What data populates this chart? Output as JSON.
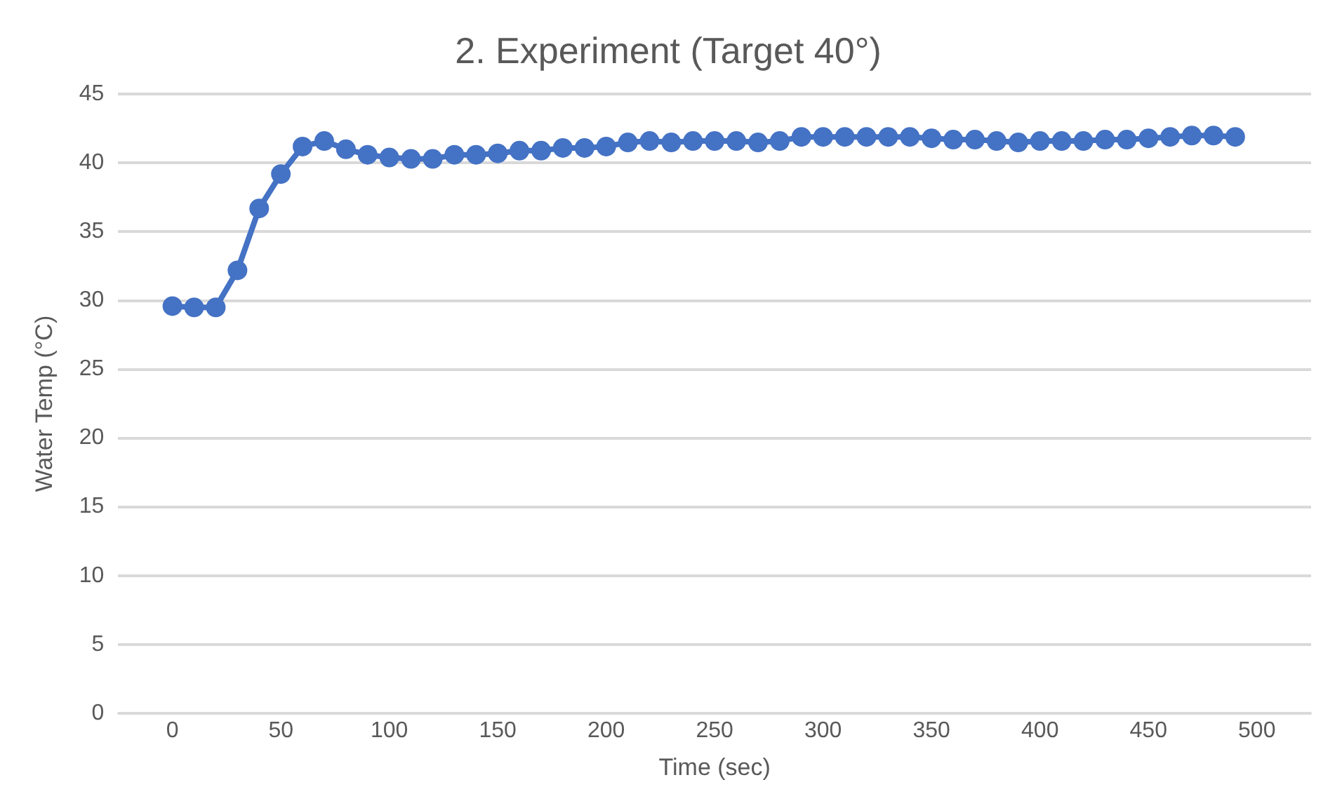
{
  "chart_data": {
    "type": "line",
    "title": "2. Experiment (Target 40°)",
    "xlabel": "Time (sec)",
    "ylabel": "Water Temp (°C)",
    "x": [
      0,
      10,
      20,
      30,
      40,
      50,
      60,
      70,
      80,
      90,
      100,
      110,
      120,
      130,
      140,
      150,
      160,
      170,
      180,
      190,
      200,
      210,
      220,
      230,
      240,
      250,
      260,
      270,
      280,
      290,
      300,
      310,
      320,
      330,
      340,
      350,
      360,
      370,
      380,
      390,
      400,
      410,
      420,
      430,
      440,
      450,
      460,
      470,
      480,
      490
    ],
    "series": [
      {
        "color": "#4472c4",
        "values": [
          29.6,
          29.5,
          29.5,
          32.2,
          36.7,
          39.2,
          41.2,
          41.6,
          41.0,
          40.6,
          40.4,
          40.3,
          40.3,
          40.6,
          40.6,
          40.7,
          40.9,
          40.9,
          41.1,
          41.1,
          41.2,
          41.5,
          41.6,
          41.5,
          41.6,
          41.6,
          41.6,
          41.5,
          41.6,
          41.9,
          41.9,
          41.9,
          41.9,
          41.9,
          41.9,
          41.8,
          41.7,
          41.7,
          41.6,
          41.5,
          41.6,
          41.6,
          41.6,
          41.7,
          41.7,
          41.8,
          41.9,
          42.0,
          42.0,
          41.9
        ]
      }
    ],
    "xlim": [
      -25,
      525
    ],
    "xticks": [
      0,
      50,
      100,
      150,
      200,
      250,
      300,
      350,
      400,
      450,
      500
    ],
    "ylim": [
      0,
      45
    ],
    "yticks": [
      0,
      5,
      10,
      15,
      20,
      25,
      30,
      35,
      40,
      45
    ],
    "grid": "y",
    "legend": false,
    "marker": "circle",
    "line_style": "solid"
  }
}
